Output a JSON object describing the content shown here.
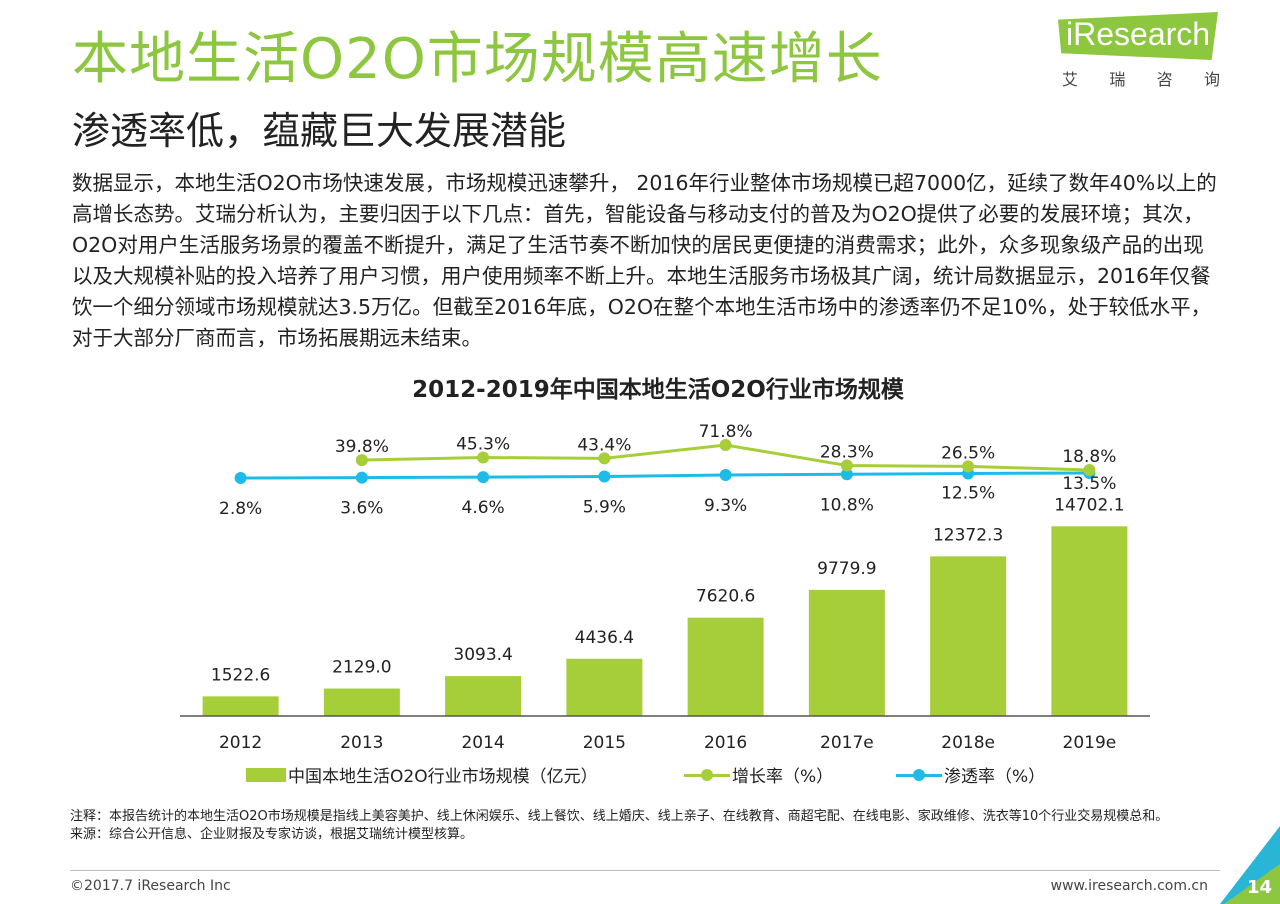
{
  "slide": {
    "title": "本地生活O2O市场规模高速增长",
    "subtitle": "渗透率低，蕴藏巨大发展潜能",
    "body": "数据显示，本地生活O2O市场快速发展，市场规模迅速攀升， 2016年行业整体市场规模已超7000亿，延续了数年40%以上的高增长态势。艾瑞分析认为，主要归因于以下几点：首先，智能设备与移动支付的普及为O2O提供了必要的发展环境；其次， O2O对用户生活服务场景的覆盖不断提升，满足了生活节奏不断加快的居民更便捷的消费需求；此外，众多现象级产品的出现以及大规模补贴的投入培养了用户习惯，用户使用频率不断上升。本地生活服务市场极其广阔，统计局数据显示，2016年仅餐饮一个细分领域市场规模就达3.5万亿。但截至2016年底，O2O在整个本地生活市场中的渗透率仍不足10%，处于较低水平，对于大部分厂商而言，市场拓展期远未结束。",
    "note": "注释：本报告统计的本地生活O2O市场规模是指线上美容美护、线上休闲娱乐、线上餐饮、线上婚庆、线上亲子、在线教育、商超宅配、在线电影、家政维修、洗衣等10个行业交易规模总和。",
    "source": "来源：综合公开信息、企业财报及专家访谈，根据艾瑞统计模型核算。",
    "copyright": "©2017.7 iResearch Inc",
    "website": "www.iresearch.com.cn",
    "page_number": "14"
  },
  "logo": {
    "text": "iResearch",
    "chars": [
      "艾",
      "瑞",
      "咨",
      "询"
    ]
  },
  "colors": {
    "title": "#8dc63f",
    "bar": "#a6ce39",
    "growth_line": "#a6ce39",
    "penetration_line": "#1dbce8",
    "accent_blue": "#29b6d6"
  },
  "chart_data": {
    "type": "bar",
    "title": "2012-2019年中国本地生活O2O行业市场规模",
    "categories": [
      "2012",
      "2013",
      "2014",
      "2015",
      "2016",
      "2017e",
      "2018e",
      "2019e"
    ],
    "series": [
      {
        "name": "中国本地生活O2O行业市场规模（亿元）",
        "type": "bar",
        "values": [
          1522.6,
          2129.0,
          3093.4,
          4436.4,
          7620.6,
          9779.9,
          12372.3,
          14702.1
        ],
        "labels": [
          "1522.6",
          "2129.0",
          "3093.4",
          "4436.4",
          "7620.6",
          "9779.9",
          "12372.3",
          "14702.1"
        ]
      },
      {
        "name": "增长率（%）",
        "type": "line",
        "values": [
          null,
          39.8,
          45.3,
          43.4,
          71.8,
          28.3,
          26.5,
          18.8
        ],
        "labels": [
          "",
          "39.8%",
          "45.3%",
          "43.4%",
          "71.8%",
          "28.3%",
          "26.5%",
          "18.8%"
        ]
      },
      {
        "name": "渗透率（%）",
        "type": "line",
        "values": [
          2.8,
          3.6,
          4.6,
          5.9,
          9.3,
          10.8,
          12.5,
          13.5
        ],
        "labels": [
          "2.8%",
          "3.6%",
          "4.6%",
          "5.9%",
          "9.3%",
          "10.8%",
          "12.5%",
          "13.5%"
        ]
      }
    ],
    "legend_position": "bottom"
  }
}
